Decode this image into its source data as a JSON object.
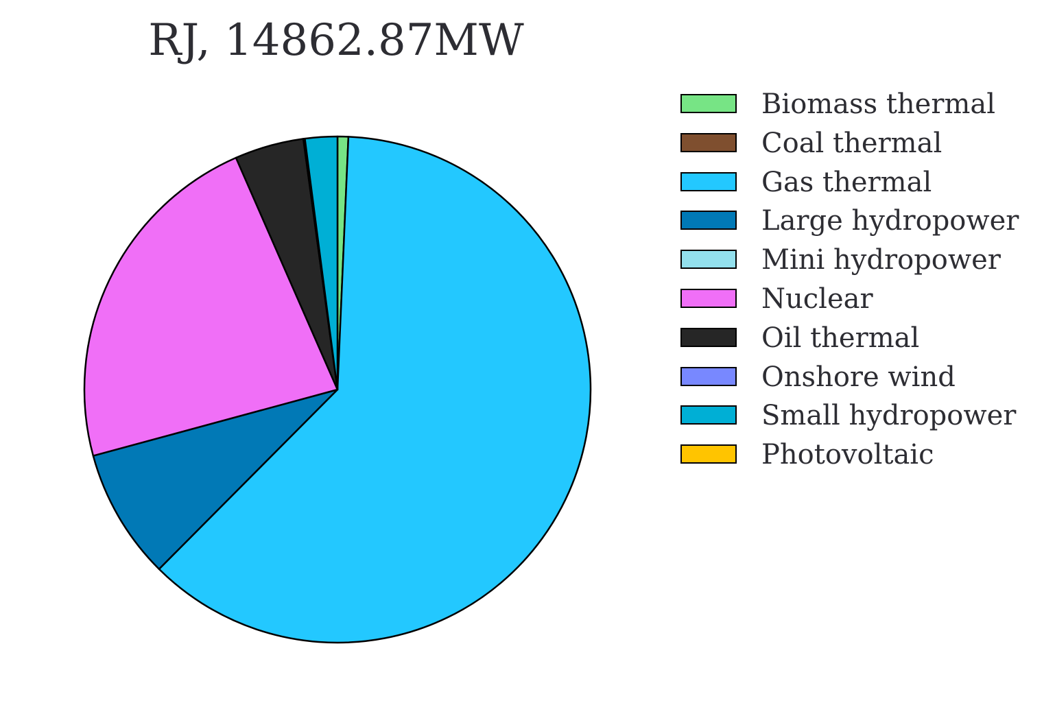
{
  "chart_data": {
    "type": "pie",
    "title": "RJ, 14862.87MW",
    "start_angle_deg": 90,
    "direction": "clockwise",
    "slices": [
      {
        "label": "Biomass thermal",
        "value": 0.7,
        "color": "#77e485"
      },
      {
        "label": "Coal thermal",
        "value": 0.0,
        "color": "#7f4f2f"
      },
      {
        "label": "Gas thermal",
        "value": 63.0,
        "color": "#23c8ff"
      },
      {
        "label": "Large hydropower",
        "value": 8.5,
        "color": "#0179b6"
      },
      {
        "label": "Mini hydropower",
        "value": 0.0,
        "color": "#93e0ed"
      },
      {
        "label": "Nuclear",
        "value": 23.1,
        "color": "#f06ff7"
      },
      {
        "label": "Oil thermal",
        "value": 4.5,
        "color": "#262626"
      },
      {
        "label": "Onshore wind",
        "value": 0.1,
        "color": "#7888ff"
      },
      {
        "label": "Small hydropower",
        "value": 2.1,
        "color": "#00afd5"
      },
      {
        "label": "Photovoltaic",
        "value": 0.0,
        "color": "#ffc400"
      }
    ],
    "legend_position": "right"
  }
}
